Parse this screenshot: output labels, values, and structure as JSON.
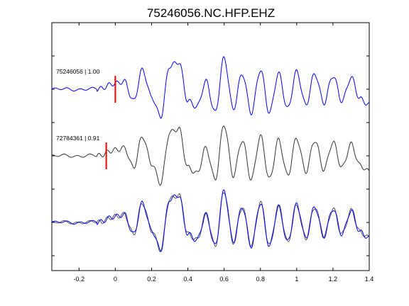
{
  "chart_data": {
    "type": "line",
    "title": "75246056.NC.HFP.EHZ",
    "xlim": [
      -0.35,
      1.4
    ],
    "x_ticks": [
      -0.2,
      0,
      0.2,
      0.4,
      0.6,
      0.8,
      1,
      1.2,
      1.4
    ],
    "x_tick_labels": [
      "-0.2",
      "0",
      "0.2",
      "0.4",
      "0.6",
      "0.8",
      "1",
      "1.2",
      "1.4"
    ],
    "grid": false,
    "traces": [
      {
        "label": "75246056 | 1.00",
        "color": "#0000ff",
        "pick_time": 0.0,
        "pick_color": "#ff0000"
      },
      {
        "label": "72784361 | 0.91",
        "color": "#000000",
        "pick_time": -0.05,
        "pick_color": "#ff0000"
      }
    ],
    "overlay": {
      "description_series": [
        "75246056",
        "72784361"
      ]
    },
    "waveform_peaks": {
      "time": [
        -0.35,
        -0.1,
        0.0,
        0.05,
        0.1,
        0.15,
        0.2,
        0.25,
        0.3,
        0.35,
        0.4,
        0.45,
        0.5,
        0.55,
        0.6,
        0.65,
        0.7,
        0.75,
        0.8,
        0.85,
        0.9,
        0.95,
        1.0,
        1.05,
        1.1,
        1.15,
        1.2,
        1.25,
        1.3,
        1.35,
        1.4
      ],
      "amplitude_ref": [
        0.0,
        0.0,
        0.15,
        0.2,
        -0.3,
        0.5,
        -0.2,
        -0.7,
        0.6,
        0.7,
        -0.3,
        -0.45,
        0.2,
        -0.6,
        0.8,
        -0.5,
        0.4,
        -0.6,
        0.5,
        -0.6,
        0.4,
        -0.5,
        0.45,
        -0.4,
        0.4,
        -0.35,
        0.35,
        -0.3,
        0.3,
        -0.25,
        -0.4
      ]
    }
  }
}
